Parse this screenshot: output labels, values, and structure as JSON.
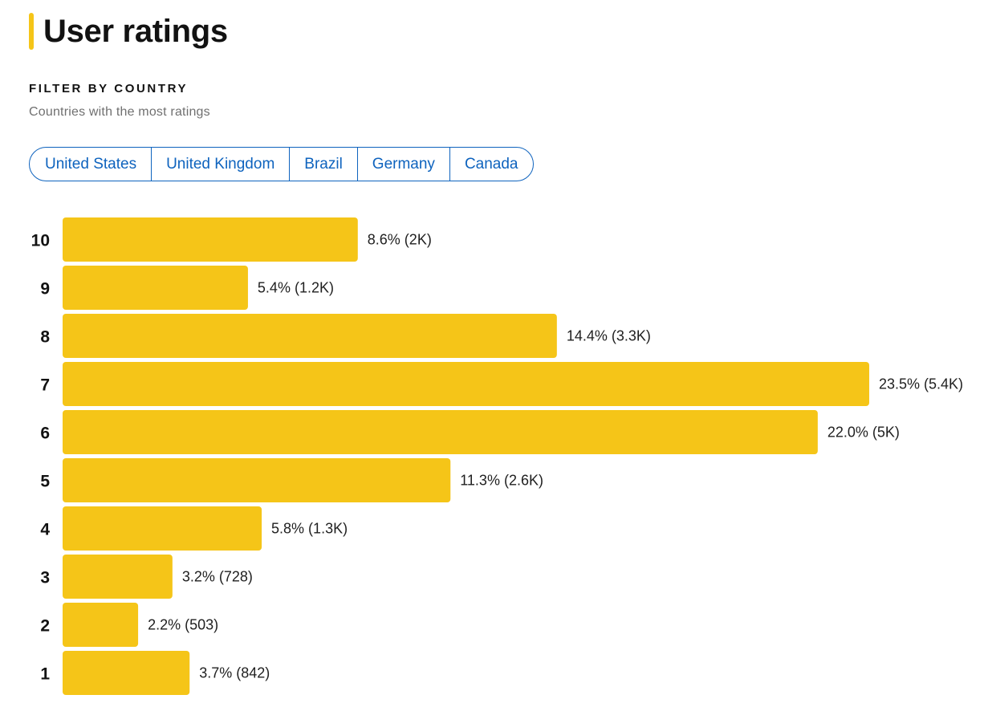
{
  "header": {
    "title": "User ratings"
  },
  "filter": {
    "heading": "FILTER BY COUNTRY",
    "subtitle": "Countries with the most ratings",
    "countries": [
      {
        "label": "United States"
      },
      {
        "label": "United Kingdom"
      },
      {
        "label": "Brazil"
      },
      {
        "label": "Germany"
      },
      {
        "label": "Canada"
      }
    ]
  },
  "colors": {
    "bar": "#f5c518",
    "link": "#0e63be"
  },
  "chart_data": {
    "type": "bar",
    "orientation": "horizontal",
    "categories": [
      "10",
      "9",
      "8",
      "7",
      "6",
      "5",
      "4",
      "3",
      "2",
      "1"
    ],
    "values": [
      8.6,
      5.4,
      14.4,
      23.5,
      22.0,
      11.3,
      5.8,
      3.2,
      2.2,
      3.7
    ],
    "value_labels": [
      "8.6% (2K)",
      "5.4% (1.2K)",
      "14.4% (3.3K)",
      "23.5% (5.4K)",
      "22.0% (5K)",
      "11.3% (2.6K)",
      "5.8% (1.3K)",
      "3.2% (728)",
      "2.2% (503)",
      "3.7% (842)"
    ],
    "xlim": [
      0,
      23.5
    ],
    "grid": false,
    "legend": "none"
  }
}
